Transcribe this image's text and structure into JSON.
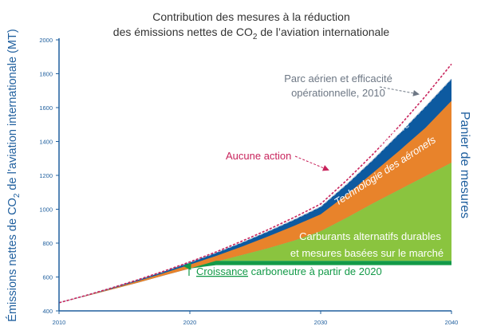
{
  "chart_data": {
    "type": "area",
    "title_line1": "Contribution des mesures à la réduction",
    "title_line2_pre": "des émissions nettes de CO",
    "title_line2_sub": "2",
    "title_line2_post": " de l’aviation internationale",
    "ylabel_pre": "Émissions nettes de CO",
    "ylabel_sub": "2",
    "ylabel_post": " de l’aviation internationale (MT)",
    "right_label": "Panier de mesures",
    "x_ticks": [
      "2010",
      "2020",
      "2030",
      "2040"
    ],
    "y_ticks": [
      "400",
      "600",
      "800",
      "1000",
      "1200",
      "1400",
      "1600",
      "1800",
      "2000"
    ],
    "xlim": [
      2010,
      2040
    ],
    "ylim": [
      400,
      2000
    ],
    "x": [
      2010,
      2012,
      2014,
      2016,
      2018,
      2020,
      2022,
      2024,
      2026,
      2028,
      2030,
      2032,
      2034,
      2036,
      2038,
      2040
    ],
    "series": [
      {
        "name": "Aucune action",
        "values": [
          448,
          490,
          535,
          583,
          634,
          689,
          748,
          812,
          880,
          953,
          1031,
          1172,
          1325,
          1490,
          1667,
          1857
        ]
      },
      {
        "name": "Parc aérien et efficacité opérationnelle, 2010",
        "values": [
          448,
          490,
          535,
          582,
          632,
          686,
          743,
          804,
          870,
          940,
          1015,
          1148,
          1292,
          1446,
          1605,
          1770
        ]
      },
      {
        "name": "ATM et infrastructure",
        "values": [
          448,
          488,
          530,
          575,
          622,
          673,
          724,
          780,
          840,
          903,
          970,
          1087,
          1215,
          1345,
          1480,
          1640
        ]
      },
      {
        "name": "Technologie des aéronefs",
        "values": [
          448,
          486,
          526,
          566,
          609,
          650,
          690,
          730,
          770,
          815,
          870,
          950,
          1035,
          1115,
          1195,
          1275
        ]
      },
      {
        "name": "Carburants alternatifs durables et mesures basées sur le marché",
        "values": [
          448,
          486,
          526,
          566,
          609,
          650,
          670,
          670,
          670,
          670,
          670,
          670,
          670,
          670,
          670,
          670
        ]
      },
      {
        "name": "Croissance carboneutre à partir de 2020",
        "values": [
          448,
          486,
          526,
          566,
          609,
          650,
          695,
          695,
          695,
          695,
          695,
          695,
          695,
          695,
          695,
          695
        ]
      }
    ],
    "labels": {
      "aucune_action": "Aucune action",
      "parc_line1": "Parc aérien et efficacité",
      "parc_line2": "opérationnelle, 2010",
      "atm": "ATM et infrastructure",
      "techno": "Technologie des aéronefs",
      "carb_line1": "Carburants alternatifs durables",
      "carb_line2": "et mesures basées sur le marché",
      "croissance_word": "Croissance",
      "croissance_rest": " carboneutre à partir de 2020"
    },
    "colors": {
      "atm": "#0d5aa0",
      "techno": "#e8832b",
      "carburants": "#8ac43f",
      "croissance": "#139a48",
      "aucune": "#c8245c",
      "parc": "#b9c4d4",
      "axis": "#1f5f9e",
      "text": "#333333"
    }
  }
}
